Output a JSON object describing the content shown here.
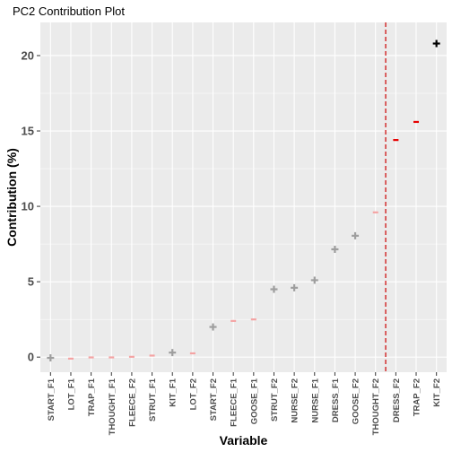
{
  "chart_data": {
    "type": "scatter",
    "title": "PC2 Contribution Plot",
    "xlabel": "Variable",
    "ylabel": "Contribution (%)",
    "ylim": [
      -1,
      22.2
    ],
    "yticks": [
      0,
      5,
      10,
      15,
      20
    ],
    "grid": true,
    "legend": "none",
    "cutoff_after": "THOUGHT_F2",
    "categories": [
      "START_F1",
      "LOT_F1",
      "TRAP_F1",
      "THOUGHT_F1",
      "FLEECE_F2",
      "STRUT_F1",
      "KIT_F1",
      "LOT_F2",
      "START_F2",
      "FLEECE_F1",
      "GOOSE_F1",
      "STRUT_F2",
      "NURSE_F2",
      "NURSE_F1",
      "DRESS_F1",
      "GOOSE_F2",
      "THOUGHT_F2",
      "DRESS_F2",
      "TRAP_F2",
      "KIT_F2"
    ],
    "values": [
      -0.05,
      -0.1,
      -0.02,
      -0.02,
      0.02,
      0.1,
      0.3,
      0.25,
      2.0,
      2.4,
      2.5,
      4.5,
      4.6,
      5.1,
      7.15,
      8.05,
      9.6,
      14.4,
      15.6,
      20.8
    ],
    "markers": [
      "plus",
      "dash",
      "dash",
      "dash",
      "dash",
      "dash",
      "plus",
      "dash",
      "plus",
      "dash",
      "dash",
      "plus",
      "plus",
      "plus",
      "plus",
      "plus",
      "dash",
      "dash",
      "dash",
      "plus"
    ],
    "colors": [
      "#9e9e9e",
      "#f4a3a3",
      "#f4a3a3",
      "#f4a3a3",
      "#f4a3a3",
      "#f4a3a3",
      "#9e9e9e",
      "#f4a3a3",
      "#9e9e9e",
      "#f4a3a3",
      "#f4a3a3",
      "#9e9e9e",
      "#9e9e9e",
      "#9e9e9e",
      "#9e9e9e",
      "#9e9e9e",
      "#f4a3a3",
      "#e60000",
      "#e60000",
      "#000000"
    ],
    "cutoff_color": "#cc0000",
    "panel_bg": "#ebebeb"
  }
}
